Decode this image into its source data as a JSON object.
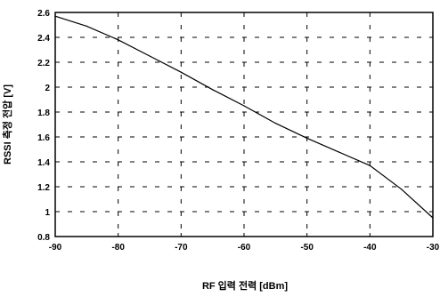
{
  "chart_data": {
    "type": "line",
    "title": "",
    "xlabel": "RF 입력 전력 [dBm]",
    "ylabel": "RSSI 측정 전압 [V]",
    "xlim": [
      -90,
      -30
    ],
    "ylim": [
      0.8,
      2.6
    ],
    "xticks": [
      -90,
      -80,
      -70,
      -60,
      -50,
      -40,
      -30
    ],
    "yticks": [
      0.8,
      1,
      1.2,
      1.4,
      1.6,
      1.8,
      2,
      2.2,
      2.4,
      2.6
    ],
    "xtick_labels": [
      "-90",
      "-80",
      "-70",
      "-60",
      "-50",
      "-40",
      "-30"
    ],
    "ytick_labels": [
      "0.8",
      "1",
      "1.2",
      "1.4",
      "1.6",
      "1.8",
      "2",
      "2.2",
      "2.4",
      "2.6"
    ],
    "grid": true,
    "grid_style": "dashed",
    "legend": false,
    "series": [
      {
        "color": "#000000",
        "x": [
          -90,
          -85,
          -80,
          -75,
          -70,
          -65,
          -60,
          -55,
          -50,
          -45,
          -40,
          -35,
          -30
        ],
        "y": [
          2.57,
          2.49,
          2.38,
          2.25,
          2.12,
          1.98,
          1.85,
          1.71,
          1.59,
          1.48,
          1.37,
          1.18,
          0.95
        ]
      }
    ]
  }
}
